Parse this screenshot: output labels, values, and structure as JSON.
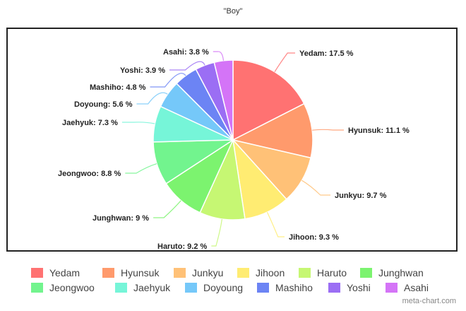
{
  "chart_data": {
    "type": "pie",
    "title": "\"Boy\"",
    "categories": [
      "Yedam",
      "Hyunsuk",
      "Junkyu",
      "Jihoon",
      "Haruto",
      "Junghwan",
      "Jeongwoo",
      "Jaehyuk",
      "Doyoung",
      "Mashiho",
      "Yoshi",
      "Asahi"
    ],
    "values": [
      17.5,
      11.1,
      9.7,
      9.3,
      9.2,
      9,
      8.8,
      7.3,
      5.6,
      4.8,
      3.9,
      3.8
    ],
    "colors": [
      "#ff7272",
      "#ff9a6c",
      "#ffc177",
      "#ffec72",
      "#c6f773",
      "#7cf36f",
      "#72f48e",
      "#76f5d8",
      "#75c8f9",
      "#6c84f4",
      "#9b6ef4",
      "#d474f7"
    ],
    "labels": [
      "Yedam: 17.5 %",
      "Hyunsuk: 11.1 %",
      "Junkyu: 9.7 %",
      "Jihoon: 9.3 %",
      "Haruto: 9.2 %",
      "Junghwan: 9 %",
      "Jeongwoo: 8.8 %",
      "Jaehyuk: 7.3 %",
      "Doyoung: 5.6 %",
      "Mashiho: 4.8 %",
      "Yoshi: 3.9 %",
      "Asahi: 3.8 %"
    ],
    "legend_position": "bottom",
    "unit": "%"
  },
  "header": {
    "title": "\"Boy\""
  },
  "legend": {
    "items": [
      {
        "label": "Yedam",
        "color": "#ff7272"
      },
      {
        "label": "Hyunsuk",
        "color": "#ff9a6c"
      },
      {
        "label": "Junkyu",
        "color": "#ffc177"
      },
      {
        "label": "Jihoon",
        "color": "#ffec72"
      },
      {
        "label": "Haruto",
        "color": "#c6f773"
      },
      {
        "label": "Junghwan",
        "color": "#7cf36f"
      },
      {
        "label": "Jeongwoo",
        "color": "#72f48e"
      },
      {
        "label": "Jaehyuk",
        "color": "#76f5d8"
      },
      {
        "label": "Doyoung",
        "color": "#75c8f9"
      },
      {
        "label": "Mashiho",
        "color": "#6c84f4"
      },
      {
        "label": "Yoshi",
        "color": "#9b6ef4"
      },
      {
        "label": "Asahi",
        "color": "#d474f7"
      }
    ]
  },
  "footer": {
    "watermark": "meta-chart.com"
  }
}
